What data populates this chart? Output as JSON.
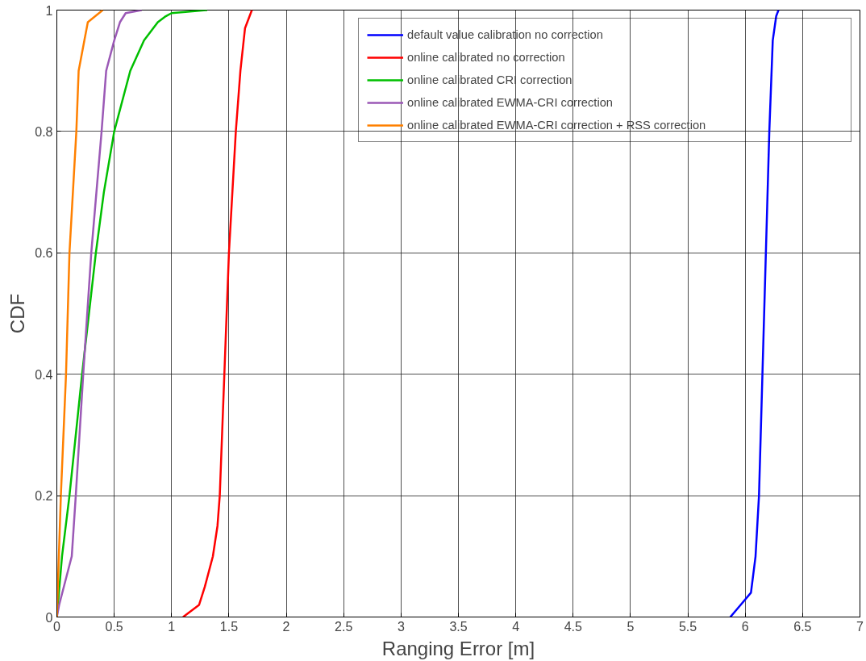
{
  "chart_data": {
    "type": "line",
    "xlabel": "Ranging Error [m]",
    "ylabel": "CDF",
    "xlim": [
      0,
      7
    ],
    "xticks": [
      0,
      0.5,
      1,
      1.5,
      2,
      2.5,
      3,
      3.5,
      4,
      4.5,
      5,
      5.5,
      6,
      6.5,
      7
    ],
    "ylim": [
      0,
      1
    ],
    "yticks": [
      0,
      0.2,
      0.4,
      0.6,
      0.8,
      1
    ],
    "grid": true,
    "legend": "top right",
    "marker": "none",
    "line_style": "solid",
    "series": [
      {
        "name": "default value calibration no correction",
        "color": "#0000ff",
        "x": [
          5.87,
          5.96,
          6.05,
          6.09,
          6.12,
          6.15,
          6.18,
          6.21,
          6.24,
          6.27,
          6.29
        ],
        "values": [
          0,
          0.02,
          0.04,
          0.1,
          0.2,
          0.4,
          0.6,
          0.8,
          0.95,
          0.99,
          1
        ]
      },
      {
        "name": "online calibrated no correction",
        "color": "#ff0000",
        "x": [
          1.1,
          1.24,
          1.29,
          1.36,
          1.4,
          1.42,
          1.46,
          1.5,
          1.56,
          1.6,
          1.64,
          1.7
        ],
        "values": [
          0,
          0.02,
          0.05,
          0.1,
          0.15,
          0.2,
          0.4,
          0.6,
          0.8,
          0.9,
          0.97,
          1
        ]
      },
      {
        "name": "online calibrated CRI correction",
        "color": "#00bf00",
        "x": [
          0,
          0.045,
          0.11,
          0.22,
          0.34,
          0.41,
          0.5,
          0.64,
          0.76,
          0.88,
          0.95,
          1.0,
          1.31
        ],
        "values": [
          0,
          0.1,
          0.2,
          0.4,
          0.6,
          0.7,
          0.8,
          0.9,
          0.95,
          0.98,
          0.99,
          0.995,
          1
        ]
      },
      {
        "name": "online calibrated EWMA-CRI correction",
        "color": "#9b59b6",
        "x": [
          0,
          0.02,
          0.13,
          0.165,
          0.23,
          0.3,
          0.39,
          0.43,
          0.5,
          0.55,
          0.6,
          0.74
        ],
        "values": [
          0,
          0.02,
          0.1,
          0.2,
          0.4,
          0.6,
          0.8,
          0.9,
          0.95,
          0.98,
          0.995,
          1
        ]
      },
      {
        "name": "online calibrated EWMA-CRI correction + RSS correction",
        "color": "#ff8000",
        "x": [
          0,
          0.035,
          0.08,
          0.11,
          0.17,
          0.19,
          0.24,
          0.27,
          0.4
        ],
        "values": [
          0,
          0.2,
          0.4,
          0.6,
          0.8,
          0.9,
          0.95,
          0.98,
          1
        ]
      }
    ]
  }
}
